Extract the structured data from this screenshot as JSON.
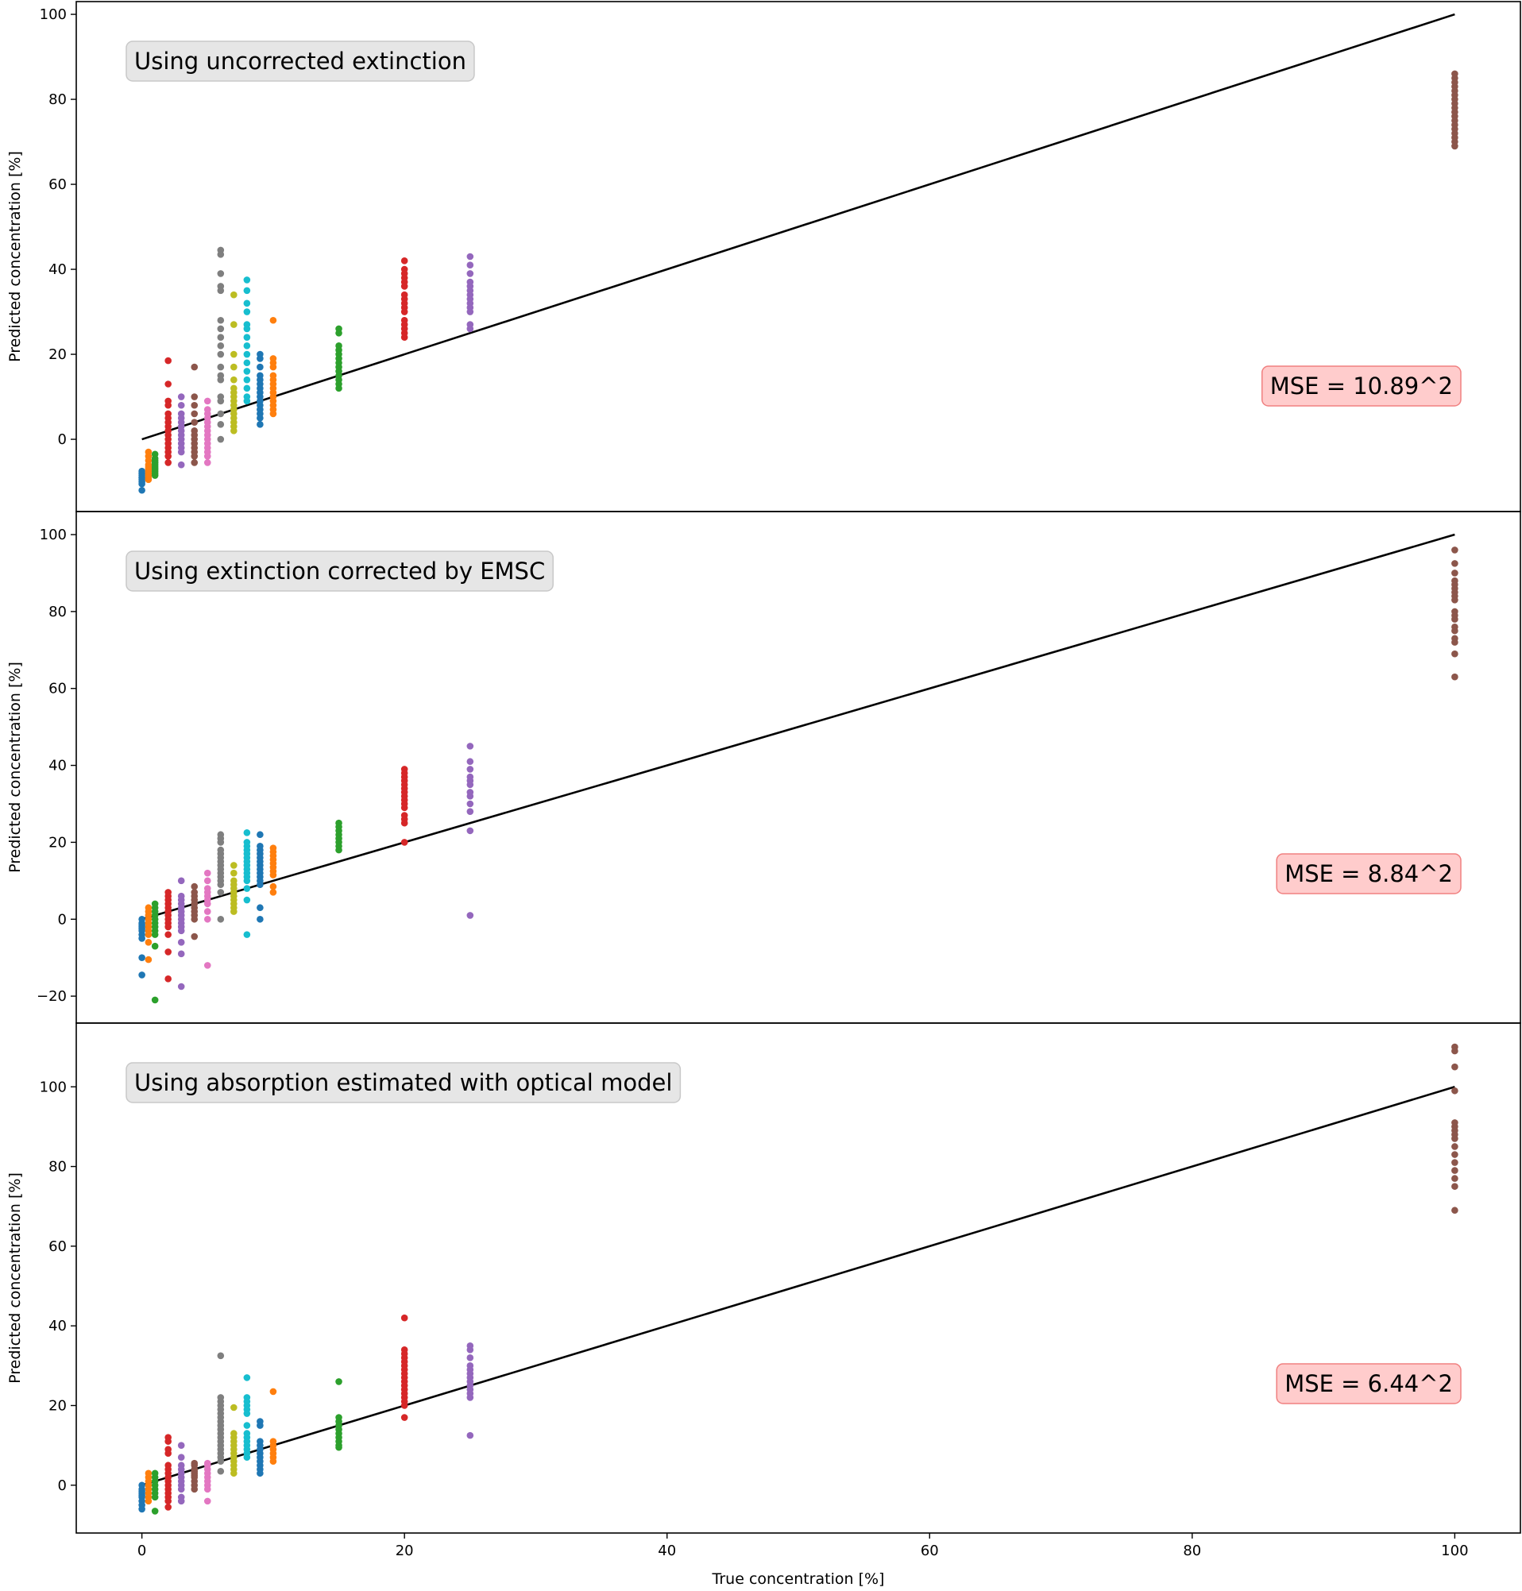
{
  "figure": {
    "xlabel": "True concentration [%]"
  },
  "chart_data": [
    {
      "type": "scatter",
      "title": "Using uncorrected extinction",
      "xlabel": "",
      "ylabel": "Predicted concentration [%]",
      "xlim": [
        -5,
        105
      ],
      "ylim": [
        -17,
        103
      ],
      "yticks": [
        0,
        20,
        40,
        60,
        80,
        100
      ],
      "grid": false,
      "annotation": {
        "text": "MSE = 10.89^2",
        "color": "#ffcccc",
        "edge": "#f08080"
      },
      "label_box": {
        "color": "#e6e6e6",
        "edge": "#c8c8c8"
      },
      "identity_line": [
        [
          0,
          0
        ],
        [
          100,
          100
        ]
      ],
      "series": [
        {
          "x": 0,
          "color": "#1f77b4",
          "y": [
            -8,
            -8.5,
            -9,
            -9.5,
            -10,
            -10.5,
            -7.5,
            -9,
            -8,
            -12
          ]
        },
        {
          "x": 0.5,
          "color": "#ff7f0e",
          "y": [
            -3,
            -4,
            -5,
            -6,
            -7,
            -7.5,
            -8,
            -8.5,
            -9,
            -9.5,
            -6.5
          ]
        },
        {
          "x": 1,
          "color": "#2ca02c",
          "y": [
            -3.5,
            -4.5,
            -5,
            -5.5,
            -6,
            -6.5,
            -7,
            -7.5,
            -8,
            -8.5
          ]
        },
        {
          "x": 2,
          "color": "#d62728",
          "y": [
            18.5,
            13,
            9,
            8,
            6,
            5,
            4,
            3,
            2,
            1,
            0,
            -1,
            -2,
            -3,
            -4,
            -5.5
          ]
        },
        {
          "x": 3,
          "color": "#9467bd",
          "y": [
            10,
            8,
            6,
            5,
            4,
            3,
            2,
            1,
            0,
            -1,
            -2,
            -3,
            -6
          ]
        },
        {
          "x": 4,
          "color": "#8c564b",
          "y": [
            17,
            10,
            8,
            6,
            4,
            2,
            1,
            0,
            -1,
            -2,
            -3,
            -4,
            -5.5
          ]
        },
        {
          "x": 5,
          "color": "#e377c2",
          "y": [
            9,
            7,
            6,
            5,
            4,
            3,
            2,
            1,
            0,
            -1,
            -2,
            -3,
            -4,
            -5.5
          ]
        },
        {
          "x": 6,
          "color": "#7f7f7f",
          "y": [
            44.5,
            43.5,
            39,
            36,
            35,
            28,
            26,
            24,
            22,
            20,
            17,
            15,
            14,
            10,
            9,
            6,
            3.5,
            0
          ]
        },
        {
          "x": 7,
          "color": "#bcbd22",
          "y": [
            34,
            27,
            20,
            17,
            14,
            12,
            11,
            10,
            9,
            8,
            7,
            6,
            5,
            4,
            3,
            2
          ]
        },
        {
          "x": 8,
          "color": "#17becf",
          "y": [
            37.5,
            35,
            32,
            30,
            27,
            26,
            24,
            22,
            20,
            18,
            16,
            14,
            12,
            10,
            9
          ]
        },
        {
          "x": 9,
          "color": "#1f77b4",
          "y": [
            20,
            19,
            17,
            15,
            14,
            13,
            12,
            11,
            10,
            9,
            8,
            7,
            6,
            5,
            3.5
          ]
        },
        {
          "x": 10,
          "color": "#ff7f0e",
          "y": [
            28,
            19,
            18,
            17,
            15,
            14,
            13,
            12,
            11,
            10,
            9,
            8,
            7,
            6
          ]
        },
        {
          "x": 15,
          "color": "#2ca02c",
          "y": [
            26,
            25,
            22,
            21,
            20,
            19,
            18,
            17,
            16,
            15,
            14,
            13,
            12
          ]
        },
        {
          "x": 20,
          "color": "#d62728",
          "y": [
            42,
            40,
            39,
            38,
            37,
            36,
            34,
            33,
            32,
            31,
            30,
            28,
            27,
            26,
            25,
            24
          ]
        },
        {
          "x": 25,
          "color": "#9467bd",
          "y": [
            43,
            41,
            39,
            37,
            36,
            35,
            34,
            33,
            32,
            31,
            30,
            27,
            26
          ]
        },
        {
          "x": 100,
          "color": "#8c564b",
          "y": [
            86,
            85,
            84,
            83,
            82,
            81,
            80,
            79,
            78,
            77,
            76,
            75,
            74,
            73,
            72,
            71,
            70,
            69
          ]
        }
      ]
    },
    {
      "type": "scatter",
      "title": "Using extinction corrected by EMSC",
      "xlabel": "",
      "ylabel": "Predicted concentration [%]",
      "xlim": [
        -5,
        105
      ],
      "ylim": [
        -27,
        106
      ],
      "yticks": [
        -20,
        0,
        20,
        40,
        60,
        80,
        100
      ],
      "grid": false,
      "annotation": {
        "text": "MSE = 8.84^2",
        "color": "#ffcccc",
        "edge": "#f08080"
      },
      "label_box": {
        "color": "#e6e6e6",
        "edge": "#c8c8c8"
      },
      "identity_line": [
        [
          0,
          0
        ],
        [
          100,
          100
        ]
      ],
      "series": [
        {
          "x": 0,
          "color": "#1f77b4",
          "y": [
            0,
            -1,
            -2,
            -3,
            -4,
            -5,
            -1.5,
            -2.5,
            -10,
            -14.5
          ]
        },
        {
          "x": 0.5,
          "color": "#ff7f0e",
          "y": [
            3,
            2,
            1,
            0,
            -1,
            -2,
            -3,
            -4,
            -6,
            -10.5
          ]
        },
        {
          "x": 1,
          "color": "#2ca02c",
          "y": [
            4,
            3,
            2,
            1,
            0,
            -1,
            -2,
            -3,
            -4,
            -7,
            -21
          ]
        },
        {
          "x": 2,
          "color": "#d62728",
          "y": [
            7,
            6,
            5,
            4,
            3,
            2,
            1,
            0,
            -1,
            -2,
            -4,
            -8.5,
            -15.5
          ]
        },
        {
          "x": 3,
          "color": "#9467bd",
          "y": [
            10,
            6,
            5,
            4,
            3,
            2,
            1,
            0,
            -1,
            -2,
            -3,
            -6,
            -9,
            -17.5
          ]
        },
        {
          "x": 4,
          "color": "#8c564b",
          "y": [
            8.5,
            7,
            6,
            5,
            4,
            3,
            2,
            1,
            0,
            -4.5
          ]
        },
        {
          "x": 5,
          "color": "#e377c2",
          "y": [
            12,
            10,
            8,
            7,
            6,
            5,
            4,
            2,
            0,
            -12
          ]
        },
        {
          "x": 6,
          "color": "#7f7f7f",
          "y": [
            22,
            21,
            20,
            18,
            17,
            16,
            15,
            14,
            13,
            12,
            11,
            10,
            9,
            7,
            0
          ]
        },
        {
          "x": 7,
          "color": "#bcbd22",
          "y": [
            14,
            12,
            10,
            9,
            8,
            7,
            6,
            5,
            4,
            3,
            2
          ]
        },
        {
          "x": 8,
          "color": "#17becf",
          "y": [
            22.5,
            20,
            19,
            18,
            17,
            16,
            15,
            14,
            13,
            12,
            11,
            10,
            8,
            5,
            -4
          ]
        },
        {
          "x": 9,
          "color": "#1f77b4",
          "y": [
            22,
            19,
            18,
            17,
            16,
            15,
            14,
            13,
            12,
            11,
            10,
            9,
            3,
            0
          ]
        },
        {
          "x": 10,
          "color": "#ff7f0e",
          "y": [
            18.5,
            17.5,
            16.5,
            15.5,
            14.5,
            13.5,
            12.5,
            11.5,
            8.5,
            7
          ]
        },
        {
          "x": 15,
          "color": "#2ca02c",
          "y": [
            25,
            24,
            23,
            22,
            21,
            20,
            19,
            18
          ]
        },
        {
          "x": 20,
          "color": "#d62728",
          "y": [
            39,
            38,
            37,
            36,
            35,
            34,
            33,
            32,
            31,
            30,
            29,
            27,
            26,
            25,
            20
          ]
        },
        {
          "x": 25,
          "color": "#9467bd",
          "y": [
            45,
            41,
            39,
            37,
            36,
            35,
            33,
            32,
            30,
            28,
            23,
            1
          ]
        },
        {
          "x": 100,
          "color": "#8c564b",
          "y": [
            96,
            92.5,
            90,
            88,
            87,
            86,
            85,
            84,
            83,
            80,
            79,
            78,
            76,
            75,
            73,
            72,
            69,
            63
          ]
        }
      ]
    },
    {
      "type": "scatter",
      "title": "Using absorption estimated with optical model",
      "xlabel": "True concentration [%]",
      "ylabel": "Predicted concentration [%]",
      "xlim": [
        -5,
        105
      ],
      "xticks": [
        0,
        20,
        40,
        60,
        80,
        100
      ],
      "ylim": [
        -12,
        116
      ],
      "yticks": [
        0,
        20,
        40,
        60,
        80,
        100
      ],
      "grid": false,
      "annotation": {
        "text": "MSE = 6.44^2",
        "color": "#ffcccc",
        "edge": "#f08080"
      },
      "label_box": {
        "color": "#e6e6e6",
        "edge": "#c8c8c8"
      },
      "identity_line": [
        [
          0,
          0
        ],
        [
          100,
          100
        ]
      ],
      "series": [
        {
          "x": 0,
          "color": "#1f77b4",
          "y": [
            0,
            -1,
            -2,
            -3,
            -4,
            -5,
            -6,
            -2.5,
            -1.5
          ]
        },
        {
          "x": 0.5,
          "color": "#ff7f0e",
          "y": [
            3,
            2,
            1,
            0,
            -1,
            -2,
            -3,
            -4
          ]
        },
        {
          "x": 1,
          "color": "#2ca02c",
          "y": [
            3,
            2,
            1,
            0,
            -1,
            -2,
            -3,
            -6.5
          ]
        },
        {
          "x": 2,
          "color": "#d62728",
          "y": [
            12,
            11,
            9,
            8,
            5,
            4,
            3,
            2,
            1,
            0,
            -1,
            -2,
            -3,
            -4,
            -5.5
          ]
        },
        {
          "x": 3,
          "color": "#9467bd",
          "y": [
            10,
            7,
            5,
            4,
            3,
            2,
            1,
            0,
            -1,
            -3,
            -4
          ]
        },
        {
          "x": 4,
          "color": "#8c564b",
          "y": [
            5.5,
            5,
            4,
            3,
            2,
            1,
            0,
            -1,
            2.5,
            3.5
          ]
        },
        {
          "x": 5,
          "color": "#e377c2",
          "y": [
            5.5,
            5,
            4,
            3,
            2,
            1,
            0,
            -1,
            -4
          ]
        },
        {
          "x": 6,
          "color": "#7f7f7f",
          "y": [
            32.5,
            22,
            21,
            20,
            19,
            18,
            17,
            16,
            15,
            14,
            13,
            12,
            11,
            10,
            9,
            8,
            7,
            6,
            3.5
          ]
        },
        {
          "x": 7,
          "color": "#bcbd22",
          "y": [
            19.5,
            13,
            12,
            11,
            10,
            9,
            8,
            7,
            6,
            5,
            4,
            3
          ]
        },
        {
          "x": 8,
          "color": "#17becf",
          "y": [
            27,
            22,
            21,
            20,
            19,
            18,
            15,
            13,
            12,
            11,
            10,
            9,
            8,
            7
          ]
        },
        {
          "x": 9,
          "color": "#1f77b4",
          "y": [
            16,
            15,
            11,
            10,
            9,
            8,
            7,
            6,
            5,
            4,
            3
          ]
        },
        {
          "x": 10,
          "color": "#ff7f0e",
          "y": [
            23.5,
            11,
            10,
            9,
            8,
            7,
            6
          ]
        },
        {
          "x": 15,
          "color": "#2ca02c",
          "y": [
            26,
            17,
            16,
            15,
            14,
            13,
            12,
            11,
            10,
            9.5
          ]
        },
        {
          "x": 20,
          "color": "#d62728",
          "y": [
            42,
            34,
            33,
            32,
            31,
            30,
            29,
            28,
            27,
            26,
            25,
            24,
            23,
            22,
            21,
            20,
            17
          ]
        },
        {
          "x": 25,
          "color": "#9467bd",
          "y": [
            35,
            34,
            32,
            30,
            29,
            28,
            27,
            26,
            25,
            24,
            23,
            22,
            12.5
          ]
        },
        {
          "x": 100,
          "color": "#8c564b",
          "y": [
            110,
            109,
            105,
            99,
            91,
            90,
            89,
            88,
            87,
            85,
            83,
            81,
            79,
            77,
            75,
            69
          ]
        }
      ]
    }
  ]
}
